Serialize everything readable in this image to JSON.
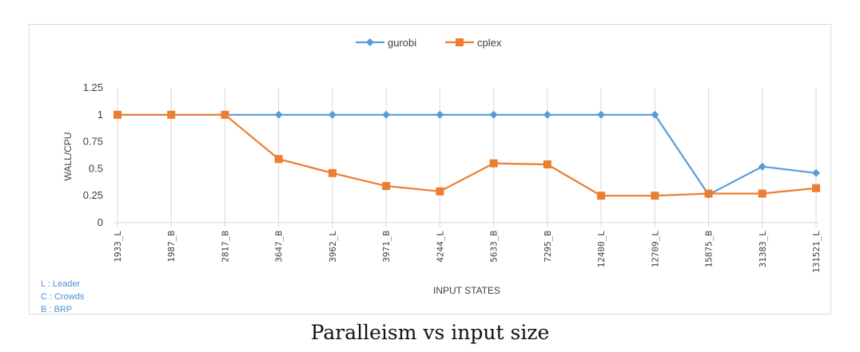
{
  "caption": "Paralleism vs input size",
  "notes": [
    "L : Leader",
    "C : Crowds",
    "B : BRP"
  ],
  "colors": {
    "gurobi": "#5b9bd5",
    "cplex": "#ed7d31",
    "grid": "#d9d9d9",
    "note": "#4a8fd6"
  },
  "chart_data": {
    "type": "line",
    "title": "",
    "xlabel": "INPUT STATES",
    "ylabel": "WALL/CPU",
    "ylim": [
      0,
      1.25
    ],
    "yticks": [
      "0",
      "0.25",
      "0.5",
      "0.75",
      "1",
      "1.25"
    ],
    "grid": "vertical",
    "legend": "top-center",
    "categories": [
      "1933_L",
      "1987_B",
      "2817_B",
      "3647_B",
      "3962_L",
      "3971_B",
      "4244_L",
      "5633_B",
      "7295_B",
      "12400_L",
      "12709_L",
      "15875_B",
      "31383_L",
      "131521_L"
    ],
    "series": [
      {
        "name": "gurobi",
        "marker": "diamond",
        "values": [
          1,
          1,
          1,
          1,
          1,
          1,
          1,
          1,
          1,
          1,
          1,
          0.26,
          0.52,
          0.46
        ]
      },
      {
        "name": "cplex",
        "marker": "square",
        "values": [
          1,
          1,
          1,
          0.59,
          0.46,
          0.34,
          0.29,
          0.55,
          0.54,
          0.25,
          0.25,
          0.27,
          0.27,
          0.32
        ]
      }
    ]
  }
}
